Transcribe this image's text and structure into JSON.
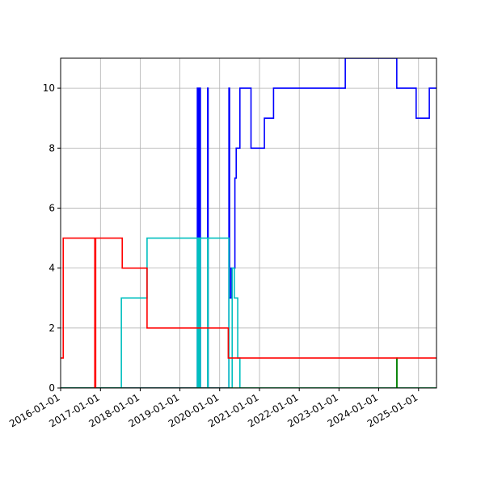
{
  "chart_data": {
    "type": "line",
    "title": "",
    "xlabel": "",
    "ylabel": "",
    "x_type": "date",
    "xlim": [
      "2016-01-01",
      "2025-06-15"
    ],
    "ylim": [
      0,
      11
    ],
    "grid": true,
    "legend": "none",
    "x_ticks": [
      "2016-01-01",
      "2017-01-01",
      "2018-01-01",
      "2019-01-01",
      "2020-01-01",
      "2021-01-01",
      "2022-01-01",
      "2023-01-01",
      "2024-01-01",
      "2025-01-01"
    ],
    "y_ticks": [
      0,
      2,
      4,
      6,
      8,
      10
    ],
    "series": [
      {
        "color": "#0000ff",
        "x": [
          "2016-01-01",
          "2019-06-10",
          "2019-06-10",
          "2019-06-14",
          "2019-06-14",
          "2019-06-18",
          "2019-06-18",
          "2019-06-22",
          "2019-06-22",
          "2019-06-26",
          "2019-06-26",
          "2019-06-30",
          "2019-06-30",
          "2019-07-04",
          "2019-07-04",
          "2019-07-08",
          "2019-07-08",
          "2019-09-12",
          "2019-09-12",
          "2019-09-17",
          "2019-09-17",
          "2020-03-26",
          "2020-03-26",
          "2020-04-01",
          "2020-04-01",
          "2020-04-15",
          "2020-04-15",
          "2020-05-20",
          "2020-05-20",
          "2020-06-01",
          "2020-06-01",
          "2020-06-20",
          "2020-06-20",
          "2020-07-05",
          "2020-07-05",
          "2020-10-15",
          "2020-10-15",
          "2020-10-20",
          "2020-10-20",
          "2021-02-15",
          "2021-02-15",
          "2021-05-10",
          "2021-05-10",
          "2023-02-28",
          "2023-02-28",
          "2024-06-15",
          "2024-06-15",
          "2024-12-10",
          "2024-12-10",
          "2025-04-10",
          "2025-04-10",
          "2025-06-15"
        ],
        "y": [
          0,
          0,
          10,
          10,
          0,
          0,
          10,
          10,
          0,
          0,
          10,
          10,
          0,
          0,
          10,
          10,
          0,
          0,
          10,
          10,
          0,
          0,
          10,
          10,
          3,
          3,
          4,
          4,
          7,
          7,
          8,
          8,
          8,
          8,
          10,
          10,
          8,
          8,
          8,
          8,
          9,
          9,
          10,
          10,
          11,
          11,
          10,
          10,
          9,
          9,
          10,
          10
        ]
      },
      {
        "color": "#00bfbf",
        "x": [
          "2016-01-01",
          "2017-07-12",
          "2017-07-12",
          "2018-03-05",
          "2018-03-05",
          "2019-06-10",
          "2019-06-10",
          "2019-06-14",
          "2019-06-14",
          "2019-06-18",
          "2019-06-18",
          "2019-06-22",
          "2019-06-22",
          "2019-06-26",
          "2019-06-26",
          "2019-06-30",
          "2019-06-30",
          "2019-07-04",
          "2019-07-04",
          "2019-07-08",
          "2019-07-08",
          "2019-09-12",
          "2019-09-12",
          "2019-09-17",
          "2019-09-17",
          "2020-03-26",
          "2020-03-26",
          "2020-04-25",
          "2020-04-25",
          "2020-05-15",
          "2020-05-15",
          "2020-06-15",
          "2020-06-15",
          "2020-07-05",
          "2020-07-05",
          "2025-06-15"
        ],
        "y": [
          0,
          0,
          3,
          3,
          5,
          5,
          0,
          0,
          5,
          5,
          0,
          0,
          5,
          5,
          0,
          0,
          5,
          5,
          0,
          0,
          5,
          5,
          0,
          0,
          5,
          5,
          0,
          0,
          4,
          4,
          3,
          3,
          1,
          1,
          0,
          0
        ]
      },
      {
        "color": "#008000",
        "x": [
          "2016-01-01",
          "2024-06-15",
          "2024-06-15",
          "2024-06-17",
          "2024-06-17",
          "2025-06-15"
        ],
        "y": [
          0,
          0,
          1,
          1,
          0,
          0
        ]
      },
      {
        "color": "#ff0000",
        "x": [
          "2016-01-01",
          "2016-01-25",
          "2016-01-25",
          "2016-11-10",
          "2016-11-10",
          "2016-11-18",
          "2016-11-18",
          "2017-07-20",
          "2017-07-20",
          "2018-03-05",
          "2018-03-05",
          "2020-03-20",
          "2020-03-20",
          "2020-05-05",
          "2020-05-05",
          "2025-06-15"
        ],
        "y": [
          1,
          1,
          5,
          5,
          0,
          0,
          5,
          5,
          4,
          4,
          2,
          2,
          1,
          1,
          1,
          1
        ]
      }
    ]
  }
}
